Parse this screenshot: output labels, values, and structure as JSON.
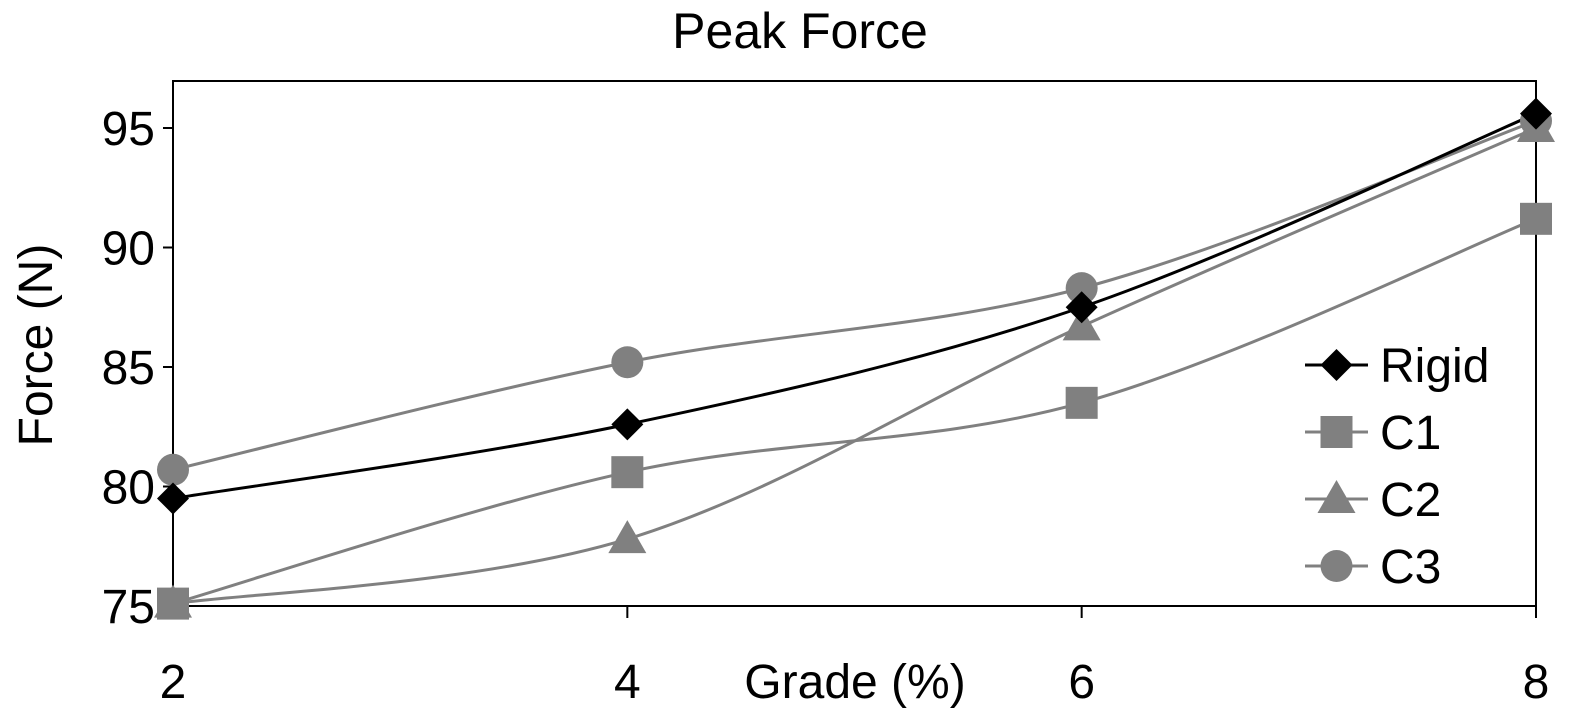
{
  "chart_data": {
    "type": "line",
    "title": "Peak Force",
    "xlabel": "Grade (%)",
    "ylabel": "Force (N)",
    "x": [
      2,
      4,
      6,
      8
    ],
    "xlim": [
      2,
      8
    ],
    "ylim": [
      75,
      97
    ],
    "xticks": [
      2,
      4,
      6,
      8
    ],
    "yticks": [
      75,
      80,
      85,
      90,
      95
    ],
    "grid": false,
    "smooth": true,
    "legend_position": "right",
    "series": [
      {
        "name": "Rigid",
        "values": [
          79.5,
          82.6,
          87.5,
          95.6
        ],
        "color": "#000000",
        "marker": "diamond"
      },
      {
        "name": "C1",
        "values": [
          75.1,
          80.6,
          83.5,
          91.2
        ],
        "color": "#808080",
        "marker": "square"
      },
      {
        "name": "C2",
        "values": [
          75.1,
          77.8,
          86.7,
          95.0
        ],
        "color": "#808080",
        "marker": "triangle"
      },
      {
        "name": "C3",
        "values": [
          80.7,
          85.2,
          88.3,
          95.3
        ],
        "color": "#808080",
        "marker": "circle"
      }
    ]
  }
}
